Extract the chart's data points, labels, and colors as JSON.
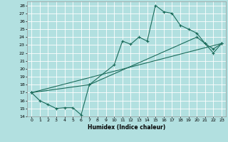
{
  "xlabel": "Humidex (Indice chaleur)",
  "background_color": "#b2e0e0",
  "line_color": "#1a6b5a",
  "grid_color": "#ffffff",
  "xlim": [
    -0.5,
    23.5
  ],
  "ylim": [
    14,
    28.5
  ],
  "xticks": [
    0,
    1,
    2,
    3,
    4,
    5,
    6,
    7,
    8,
    9,
    10,
    11,
    12,
    13,
    14,
    15,
    16,
    17,
    18,
    19,
    20,
    21,
    22,
    23
  ],
  "yticks": [
    14,
    15,
    16,
    17,
    18,
    19,
    20,
    21,
    22,
    23,
    24,
    25,
    26,
    27,
    28
  ],
  "series": [
    {
      "x": [
        0,
        1,
        2,
        3,
        4,
        5,
        6,
        7,
        10,
        11,
        12,
        13,
        14,
        15,
        16,
        17,
        18,
        19,
        20,
        21,
        22,
        23
      ],
      "y": [
        17,
        16,
        15.5,
        15,
        15.1,
        15.1,
        14.2,
        18.0,
        20.5,
        23.5,
        23.1,
        24.0,
        23.5,
        28.0,
        27.2,
        27.0,
        25.5,
        25.0,
        24.5,
        23.2,
        22.0,
        23.2
      ]
    },
    {
      "x": [
        0,
        7,
        20,
        21,
        22,
        23
      ],
      "y": [
        17,
        18.0,
        24.0,
        23.2,
        22.5,
        23.2
      ]
    },
    {
      "x": [
        0,
        23
      ],
      "y": [
        17,
        23.2
      ]
    }
  ]
}
